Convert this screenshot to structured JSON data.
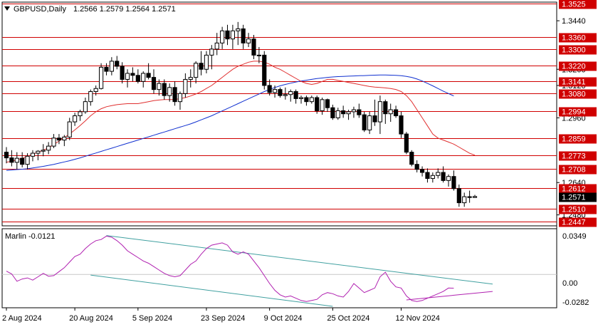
{
  "header": {
    "symbol_tf": "GBPUSD,Daily",
    "ohlc": "1.2566 1.2579 1.2564 1.2571"
  },
  "indicator": {
    "label": "Marlin -0.0121",
    "scale": [
      "0.0349",
      "0.00",
      "-0.0282"
    ]
  },
  "colors": {
    "bull": "#ffffff",
    "bear": "#000000",
    "level": "#d00000",
    "ma_red": "#e03030",
    "ma_blue": "#1030d0",
    "osc": "#b020b0",
    "channel": "#40a0a0",
    "current_box": "#000000"
  },
  "chart_data": {
    "type": "candlestick",
    "title": "GBPUSD,Daily",
    "ylim": [
      1.2447,
      1.3525
    ],
    "x_labels": [
      "2 Aug 2024",
      "20 Aug 2024",
      "5 Sep 2024",
      "23 Sep 2024",
      "9 Oct 2024",
      "25 Oct 2024",
      "12 Nov 2024"
    ],
    "price_ticks": [
      "1.3440",
      "1.3200",
      "1.3120",
      "1.2960",
      "1.2640",
      "1.2480"
    ],
    "levels": [
      {
        "value": 1.3525,
        "label": "1.3525"
      },
      {
        "value": 1.336,
        "label": "1.3360"
      },
      {
        "value": 1.33,
        "label": "1.3300"
      },
      {
        "value": 1.322,
        "label": "1.3220"
      },
      {
        "value": 1.3141,
        "label": "1.3141"
      },
      {
        "value": 1.308,
        "label": "1.3080"
      },
      {
        "value": 1.2994,
        "label": "1.2994"
      },
      {
        "value": 1.2859,
        "label": "1.2859"
      },
      {
        "value": 1.2773,
        "label": "1.2773"
      },
      {
        "value": 1.2708,
        "label": "1.2708"
      },
      {
        "value": 1.2612,
        "label": "1.2612"
      },
      {
        "value": 1.251,
        "label": "1.2510"
      },
      {
        "value": 1.2447,
        "label": "1.2447"
      }
    ],
    "current_price": {
      "value": 1.2571,
      "label": "1.2571"
    },
    "candles": [
      [
        1.279,
        1.2815,
        1.2735,
        1.2762
      ],
      [
        1.2762,
        1.28,
        1.272,
        1.274
      ],
      [
        1.274,
        1.279,
        1.2705,
        1.276
      ],
      [
        1.276,
        1.279,
        1.2715,
        1.273
      ],
      [
        1.273,
        1.2785,
        1.2705,
        1.277
      ],
      [
        1.277,
        1.28,
        1.2745,
        1.2785
      ],
      [
        1.2785,
        1.28,
        1.275,
        1.2795
      ],
      [
        1.2795,
        1.283,
        1.277,
        1.28
      ],
      [
        1.28,
        1.284,
        1.278,
        1.282
      ],
      [
        1.282,
        1.288,
        1.281,
        1.286
      ],
      [
        1.286,
        1.288,
        1.283,
        1.285
      ],
      [
        1.285,
        1.2875,
        1.282,
        1.2865
      ],
      [
        1.2865,
        1.296,
        1.285,
        1.294
      ],
      [
        1.294,
        1.2985,
        1.292,
        1.297
      ],
      [
        1.297,
        1.3,
        1.2945,
        1.299
      ],
      [
        1.299,
        1.306,
        1.298,
        1.304
      ],
      [
        1.304,
        1.31,
        1.302,
        1.309
      ],
      [
        1.309,
        1.312,
        1.307,
        1.3105
      ],
      [
        1.3105,
        1.323,
        1.31,
        1.321
      ],
      [
        1.321,
        1.323,
        1.317,
        1.319
      ],
      [
        1.319,
        1.326,
        1.317,
        1.324
      ],
      [
        1.324,
        1.3266,
        1.32,
        1.3215
      ],
      [
        1.3215,
        1.3235,
        1.313,
        1.315
      ],
      [
        1.315,
        1.32,
        1.311,
        1.318
      ],
      [
        1.318,
        1.321,
        1.314,
        1.317
      ],
      [
        1.317,
        1.32,
        1.313,
        1.314
      ],
      [
        1.314,
        1.319,
        1.311,
        1.318
      ],
      [
        1.318,
        1.323,
        1.315,
        1.316
      ],
      [
        1.316,
        1.32,
        1.308,
        1.31
      ],
      [
        1.31,
        1.315,
        1.307,
        1.313
      ],
      [
        1.313,
        1.315,
        1.305,
        1.307
      ],
      [
        1.307,
        1.313,
        1.304,
        1.311
      ],
      [
        1.311,
        1.314,
        1.302,
        1.304
      ],
      [
        1.304,
        1.309,
        1.3,
        1.308
      ],
      [
        1.308,
        1.318,
        1.306,
        1.315
      ],
      [
        1.315,
        1.32,
        1.311,
        1.316
      ],
      [
        1.316,
        1.324,
        1.313,
        1.323
      ],
      [
        1.323,
        1.329,
        1.317,
        1.32
      ],
      [
        1.32,
        1.329,
        1.318,
        1.327
      ],
      [
        1.327,
        1.332,
        1.32,
        1.33
      ],
      [
        1.33,
        1.338,
        1.327,
        1.333
      ],
      [
        1.333,
        1.341,
        1.33,
        1.339
      ],
      [
        1.339,
        1.342,
        1.332,
        1.335
      ],
      [
        1.335,
        1.342,
        1.33,
        1.339
      ],
      [
        1.339,
        1.3434,
        1.332,
        1.34
      ],
      [
        1.34,
        1.342,
        1.33,
        1.333
      ],
      [
        1.333,
        1.338,
        1.331,
        1.335
      ],
      [
        1.335,
        1.337,
        1.325,
        1.327
      ],
      [
        1.327,
        1.331,
        1.323,
        1.327
      ],
      [
        1.327,
        1.329,
        1.31,
        1.312
      ],
      [
        1.312,
        1.315,
        1.307,
        1.3085
      ],
      [
        1.3085,
        1.312,
        1.306,
        1.31
      ],
      [
        1.31,
        1.311,
        1.306,
        1.307
      ],
      [
        1.307,
        1.311,
        1.305,
        1.3075
      ],
      [
        1.3075,
        1.31,
        1.304,
        1.309
      ],
      [
        1.309,
        1.31,
        1.303,
        1.3055
      ],
      [
        1.3055,
        1.307,
        1.303,
        1.306
      ],
      [
        1.306,
        1.307,
        1.302,
        1.304
      ],
      [
        1.304,
        1.307,
        1.303,
        1.306
      ],
      [
        1.306,
        1.307,
        1.298,
        1.2995
      ],
      [
        1.2995,
        1.306,
        1.2975,
        1.305
      ],
      [
        1.305,
        1.3055,
        1.299,
        1.301
      ],
      [
        1.301,
        1.3025,
        1.295,
        1.296
      ],
      [
        1.296,
        1.301,
        1.295,
        1.2995
      ],
      [
        1.2995,
        1.302,
        1.296,
        1.298
      ],
      [
        1.298,
        1.3,
        1.295,
        1.299
      ],
      [
        1.299,
        1.3015,
        1.296,
        1.3
      ],
      [
        1.3,
        1.303,
        1.296,
        1.2975
      ],
      [
        1.2975,
        1.299,
        1.289,
        1.29
      ],
      [
        1.29,
        1.299,
        1.288,
        1.297
      ],
      [
        1.297,
        1.305,
        1.292,
        1.294
      ],
      [
        1.294,
        1.307,
        1.288,
        1.304
      ],
      [
        1.304,
        1.305,
        1.293,
        1.298
      ],
      [
        1.298,
        1.303,
        1.294,
        1.3
      ],
      [
        1.3,
        1.302,
        1.296,
        1.297
      ],
      [
        1.297,
        1.299,
        1.286,
        1.288
      ],
      [
        1.288,
        1.289,
        1.278,
        1.279
      ],
      [
        1.279,
        1.28,
        1.272,
        1.273
      ],
      [
        1.273,
        1.275,
        1.269,
        1.2705
      ],
      [
        1.2705,
        1.272,
        1.267,
        1.269
      ],
      [
        1.269,
        1.271,
        1.264,
        1.266
      ],
      [
        1.266,
        1.269,
        1.264,
        1.2675
      ],
      [
        1.2675,
        1.271,
        1.266,
        1.269
      ],
      [
        1.269,
        1.272,
        1.264,
        1.265
      ],
      [
        1.265,
        1.268,
        1.262,
        1.267
      ],
      [
        1.267,
        1.27,
        1.26,
        1.261
      ],
      [
        1.261,
        1.263,
        1.252,
        1.254
      ],
      [
        1.254,
        1.259,
        1.252,
        1.257
      ],
      [
        1.257,
        1.26,
        1.254,
        1.2566
      ],
      [
        1.2566,
        1.2579,
        1.2564,
        1.2571
      ]
    ],
    "ma_red": [
      1.274,
      1.2745,
      1.2752,
      1.276,
      1.277,
      1.278,
      1.279,
      1.28,
      1.2812,
      1.2828,
      1.2845,
      1.2862,
      1.288,
      1.29,
      1.2922,
      1.2945,
      1.297,
      1.299,
      1.3005,
      1.3015,
      1.302,
      1.3025,
      1.3028,
      1.303,
      1.303,
      1.303,
      1.3035,
      1.304,
      1.3045,
      1.3048,
      1.305,
      1.305,
      1.305,
      1.3055,
      1.306,
      1.3068,
      1.3078,
      1.309,
      1.3105,
      1.312,
      1.314,
      1.316,
      1.318,
      1.32,
      1.3215,
      1.3225,
      1.3235,
      1.324,
      1.324,
      1.3235,
      1.3225,
      1.321,
      1.32,
      1.3185,
      1.317,
      1.3155,
      1.314,
      1.313,
      1.3125,
      1.313,
      1.314,
      1.315,
      1.315,
      1.3145,
      1.314,
      1.3135,
      1.313,
      1.3125,
      1.312,
      1.3115,
      1.3112,
      1.311,
      1.3108,
      1.3105,
      1.31,
      1.309,
      1.307,
      1.304,
      1.3,
      1.296,
      1.292,
      1.288,
      1.286,
      1.285,
      1.284,
      1.283,
      1.2815,
      1.28,
      1.2785,
      1.2775
    ],
    "ma_blue_start_index": 0,
    "ma_blue": [
      1.27,
      1.2702,
      1.2704,
      1.2706,
      1.2708,
      1.2712,
      1.2716,
      1.272,
      1.2725,
      1.273,
      1.2736,
      1.2742,
      1.2748,
      1.2755,
      1.2762,
      1.277,
      1.2778,
      1.2786,
      1.2794,
      1.2802,
      1.281,
      1.2818,
      1.2826,
      1.2834,
      1.2842,
      1.285,
      1.2858,
      1.2866,
      1.2874,
      1.2882,
      1.289,
      1.2898,
      1.2906,
      1.2914,
      1.2922,
      1.293,
      1.294,
      1.295,
      1.296,
      1.297,
      1.2982,
      1.2994,
      1.3006,
      1.3018,
      1.303,
      1.3042,
      1.3054,
      1.3066,
      1.3078,
      1.309,
      1.31,
      1.311,
      1.3118,
      1.3125,
      1.3131,
      1.3137,
      1.3142,
      1.3146,
      1.315,
      1.3154,
      1.3157,
      1.316,
      1.3162,
      1.3164,
      1.3165,
      1.3166,
      1.3167,
      1.3168,
      1.3169,
      1.317,
      1.3171,
      1.3172,
      1.3172,
      1.3171,
      1.317,
      1.3168,
      1.3165,
      1.316,
      1.3152,
      1.3142,
      1.313,
      1.3118,
      1.3105,
      1.3092,
      1.308,
      1.3068
    ],
    "ma_blue_points": 86,
    "osc": [
      0.003,
      0.0005,
      -0.006,
      -0.004,
      -0.003,
      -0.005,
      -0.002,
      0.001,
      -0.0015,
      -0.001,
      0.0025,
      0.006,
      0.011,
      0.016,
      0.018,
      0.023,
      0.027,
      0.03,
      0.031,
      0.034,
      0.033,
      0.03,
      0.026,
      0.021,
      0.018,
      0.015,
      0.012,
      0.01,
      0.007,
      0.004,
      0.001,
      -0.001,
      -0.002,
      -0.001,
      0.004,
      0.009,
      0.012,
      0.018,
      0.023,
      0.026,
      0.027,
      0.028,
      0.026,
      0.02,
      0.018,
      0.02,
      0.018,
      0.012,
      0.006,
      -0.001,
      -0.008,
      -0.014,
      -0.018,
      -0.02,
      -0.019,
      -0.021,
      -0.023,
      -0.024,
      -0.023,
      -0.022,
      -0.018,
      -0.016,
      -0.017,
      -0.019,
      -0.02,
      -0.015,
      -0.008,
      -0.012,
      -0.016,
      -0.014,
      -0.012,
      -0.002,
      0.002,
      -0.006,
      -0.011,
      -0.012,
      -0.019,
      -0.023,
      -0.024,
      -0.023,
      -0.021,
      -0.019,
      -0.017,
      -0.015,
      -0.012,
      -0.0121
    ],
    "osc_ylim": [
      -0.0282,
      0.0349
    ]
  }
}
